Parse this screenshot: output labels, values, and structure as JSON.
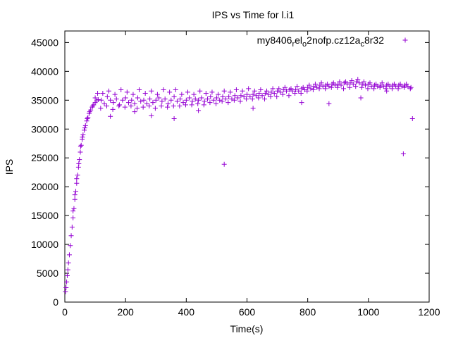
{
  "colors": {
    "series": "#9400d3",
    "axis": "#000000",
    "background": "#ffffff"
  },
  "chart_data": {
    "type": "scatter",
    "title": "IPS vs Time for l.i1",
    "xlabel": "Time(s)",
    "ylabel": "IPS",
    "xlim": [
      0,
      1200
    ],
    "ylim": [
      0,
      47000
    ],
    "xticks": [
      0,
      200,
      400,
      600,
      800,
      1000,
      1200
    ],
    "yticks": [
      0,
      5000,
      10000,
      15000,
      20000,
      25000,
      30000,
      35000,
      40000,
      45000
    ],
    "xtick_labels": [
      "0",
      "200",
      "400",
      "600",
      "800",
      "1000",
      "1200"
    ],
    "ytick_labels": [
      "0",
      "5000",
      "10000",
      "15000",
      "20000",
      "25000",
      "30000",
      "35000",
      "40000",
      "45000"
    ],
    "legend": {
      "position": "top-right",
      "label_parts": [
        "my8406",
        "r",
        "el",
        "o",
        "2nofp.cz12a",
        "c",
        "8r32"
      ],
      "marker": "+"
    },
    "series": [
      {
        "name": "my8406_rel_o2nofp.cz12a_c8r32",
        "marker": "+",
        "points": [
          [
            2,
            1800
          ],
          [
            4,
            2500
          ],
          [
            6,
            3500
          ],
          [
            8,
            4600
          ],
          [
            10,
            5600
          ],
          [
            12,
            6800
          ],
          [
            15,
            8200
          ],
          [
            18,
            9800
          ],
          [
            21,
            11500
          ],
          [
            24,
            13000
          ],
          [
            27,
            14600
          ],
          [
            30,
            16200
          ],
          [
            33,
            17800
          ],
          [
            36,
            19200
          ],
          [
            39,
            20600
          ],
          [
            42,
            22000
          ],
          [
            45,
            23400
          ],
          [
            48,
            24700
          ],
          [
            51,
            26000
          ],
          [
            54,
            27200
          ],
          [
            57,
            28200
          ],
          [
            60,
            29000
          ],
          [
            64,
            29800
          ],
          [
            68,
            30600
          ],
          [
            72,
            31400
          ],
          [
            76,
            32000
          ],
          [
            80,
            32700
          ],
          [
            85,
            33300
          ],
          [
            90,
            33800
          ],
          [
            95,
            34200
          ],
          [
            100,
            34600
          ],
          [
            105,
            34900
          ],
          [
            110,
            35100
          ],
          [
            27,
            15800
          ],
          [
            33,
            18600
          ],
          [
            39,
            21400
          ],
          [
            46,
            24000
          ],
          [
            52,
            27000
          ],
          [
            58,
            28600
          ],
          [
            66,
            30200
          ],
          [
            74,
            31800
          ],
          [
            82,
            33000
          ],
          [
            92,
            34000
          ],
          [
            100,
            35400
          ],
          [
            108,
            36200
          ],
          [
            120,
            35000
          ],
          [
            130,
            34400
          ],
          [
            140,
            35600
          ],
          [
            150,
            35000
          ],
          [
            160,
            34600
          ],
          [
            170,
            35200
          ],
          [
            180,
            34200
          ],
          [
            190,
            35000
          ],
          [
            200,
            35400
          ],
          [
            210,
            34600
          ],
          [
            220,
            35000
          ],
          [
            230,
            34400
          ],
          [
            240,
            35400
          ],
          [
            250,
            34800
          ],
          [
            260,
            35000
          ],
          [
            270,
            34400
          ],
          [
            280,
            35200
          ],
          [
            290,
            34600
          ],
          [
            300,
            35000
          ],
          [
            310,
            35400
          ],
          [
            320,
            34800
          ],
          [
            330,
            35200
          ],
          [
            340,
            34400
          ],
          [
            350,
            35000
          ],
          [
            360,
            35600
          ],
          [
            370,
            34800
          ],
          [
            380,
            35200
          ],
          [
            390,
            34600
          ],
          [
            400,
            35000
          ],
          [
            410,
            35400
          ],
          [
            420,
            34800
          ],
          [
            430,
            35200
          ],
          [
            440,
            35000
          ],
          [
            450,
            35400
          ],
          [
            460,
            34800
          ],
          [
            470,
            35200
          ],
          [
            480,
            35600
          ],
          [
            490,
            35000
          ],
          [
            500,
            35400
          ],
          [
            510,
            35000
          ],
          [
            520,
            35600
          ],
          [
            530,
            35200
          ],
          [
            540,
            35600
          ],
          [
            550,
            35200
          ],
          [
            560,
            35800
          ],
          [
            570,
            35400
          ],
          [
            580,
            35800
          ],
          [
            590,
            35600
          ],
          [
            600,
            36000
          ],
          [
            610,
            35600
          ],
          [
            620,
            36000
          ],
          [
            630,
            35800
          ],
          [
            640,
            36200
          ],
          [
            650,
            35800
          ],
          [
            660,
            36200
          ],
          [
            670,
            36000
          ],
          [
            680,
            36400
          ],
          [
            690,
            36200
          ],
          [
            700,
            36600
          ],
          [
            710,
            36400
          ],
          [
            720,
            36800
          ],
          [
            730,
            36600
          ],
          [
            740,
            36800
          ],
          [
            750,
            36600
          ],
          [
            760,
            36800
          ],
          [
            770,
            36600
          ],
          [
            780,
            37000
          ],
          [
            790,
            36800
          ],
          [
            800,
            37200
          ],
          [
            810,
            37000
          ],
          [
            820,
            37400
          ],
          [
            830,
            37200
          ],
          [
            840,
            37600
          ],
          [
            850,
            37400
          ],
          [
            860,
            37600
          ],
          [
            870,
            37400
          ],
          [
            880,
            37800
          ],
          [
            890,
            37600
          ],
          [
            900,
            37800
          ],
          [
            910,
            37600
          ],
          [
            920,
            38000
          ],
          [
            930,
            37800
          ],
          [
            940,
            38000
          ],
          [
            950,
            37800
          ],
          [
            960,
            38200
          ],
          [
            970,
            38000
          ],
          [
            980,
            37800
          ],
          [
            990,
            37600
          ],
          [
            1000,
            37800
          ],
          [
            1010,
            37400
          ],
          [
            1020,
            37600
          ],
          [
            1030,
            37400
          ],
          [
            1040,
            37600
          ],
          [
            1050,
            37400
          ],
          [
            1060,
            37600
          ],
          [
            1070,
            37400
          ],
          [
            1080,
            37600
          ],
          [
            1090,
            37400
          ],
          [
            1100,
            37600
          ],
          [
            1110,
            37400
          ],
          [
            1120,
            37600
          ],
          [
            1130,
            37400
          ],
          [
            1140,
            37200
          ],
          [
            125,
            36200
          ],
          [
            145,
            36600
          ],
          [
            165,
            36000
          ],
          [
            185,
            36800
          ],
          [
            205,
            36400
          ],
          [
            225,
            36000
          ],
          [
            245,
            36800
          ],
          [
            265,
            36200
          ],
          [
            285,
            36600
          ],
          [
            305,
            36000
          ],
          [
            325,
            36800
          ],
          [
            345,
            36400
          ],
          [
            365,
            36800
          ],
          [
            385,
            36000
          ],
          [
            405,
            36400
          ],
          [
            425,
            36000
          ],
          [
            445,
            36600
          ],
          [
            465,
            36200
          ],
          [
            485,
            36400
          ],
          [
            505,
            36000
          ],
          [
            525,
            36600
          ],
          [
            545,
            36400
          ],
          [
            565,
            36800
          ],
          [
            585,
            36600
          ],
          [
            605,
            37000
          ],
          [
            625,
            36600
          ],
          [
            645,
            36800
          ],
          [
            665,
            36600
          ],
          [
            685,
            37000
          ],
          [
            705,
            37000
          ],
          [
            725,
            37200
          ],
          [
            745,
            37000
          ],
          [
            765,
            37400
          ],
          [
            785,
            37200
          ],
          [
            805,
            37600
          ],
          [
            825,
            37800
          ],
          [
            845,
            38000
          ],
          [
            865,
            37800
          ],
          [
            885,
            38000
          ],
          [
            905,
            38200
          ],
          [
            925,
            38200
          ],
          [
            945,
            38400
          ],
          [
            965,
            38600
          ],
          [
            985,
            38200
          ],
          [
            1005,
            38000
          ],
          [
            1025,
            37800
          ],
          [
            1045,
            38000
          ],
          [
            1065,
            37800
          ],
          [
            1085,
            37800
          ],
          [
            1105,
            37800
          ],
          [
            1125,
            37800
          ],
          [
            118,
            33600
          ],
          [
            138,
            34000
          ],
          [
            158,
            33400
          ],
          [
            178,
            34000
          ],
          [
            198,
            33800
          ],
          [
            218,
            34000
          ],
          [
            238,
            33600
          ],
          [
            258,
            33800
          ],
          [
            278,
            34000
          ],
          [
            298,
            33600
          ],
          [
            318,
            34000
          ],
          [
            338,
            33800
          ],
          [
            358,
            34000
          ],
          [
            378,
            34000
          ],
          [
            398,
            34200
          ],
          [
            418,
            34200
          ],
          [
            438,
            34400
          ],
          [
            458,
            34200
          ],
          [
            478,
            34600
          ],
          [
            498,
            34400
          ],
          [
            518,
            34800
          ],
          [
            538,
            34600
          ],
          [
            558,
            35000
          ],
          [
            578,
            34800
          ],
          [
            598,
            35200
          ],
          [
            618,
            35200
          ],
          [
            638,
            35400
          ],
          [
            658,
            35200
          ],
          [
            678,
            35600
          ],
          [
            698,
            35600
          ],
          [
            718,
            36000
          ],
          [
            738,
            35800
          ],
          [
            758,
            36200
          ],
          [
            778,
            36200
          ],
          [
            798,
            36600
          ],
          [
            818,
            36800
          ],
          [
            838,
            37000
          ],
          [
            858,
            37000
          ],
          [
            878,
            37200
          ],
          [
            898,
            37200
          ],
          [
            918,
            37000
          ],
          [
            938,
            37200
          ],
          [
            958,
            37400
          ],
          [
            978,
            37200
          ],
          [
            998,
            37000
          ],
          [
            1018,
            37000
          ],
          [
            1038,
            37200
          ],
          [
            1058,
            37000
          ],
          [
            1078,
            37000
          ],
          [
            1098,
            37000
          ],
          [
            1118,
            37200
          ],
          [
            1138,
            37000
          ],
          [
            150,
            32200
          ],
          [
            230,
            33000
          ],
          [
            285,
            32300
          ],
          [
            360,
            31800
          ],
          [
            440,
            33200
          ],
          [
            620,
            33600
          ],
          [
            780,
            34600
          ],
          [
            870,
            34400
          ],
          [
            975,
            35400
          ],
          [
            1060,
            36600
          ],
          [
            525,
            23900
          ],
          [
            1115,
            25700
          ],
          [
            1145,
            31800
          ]
        ]
      }
    ]
  }
}
